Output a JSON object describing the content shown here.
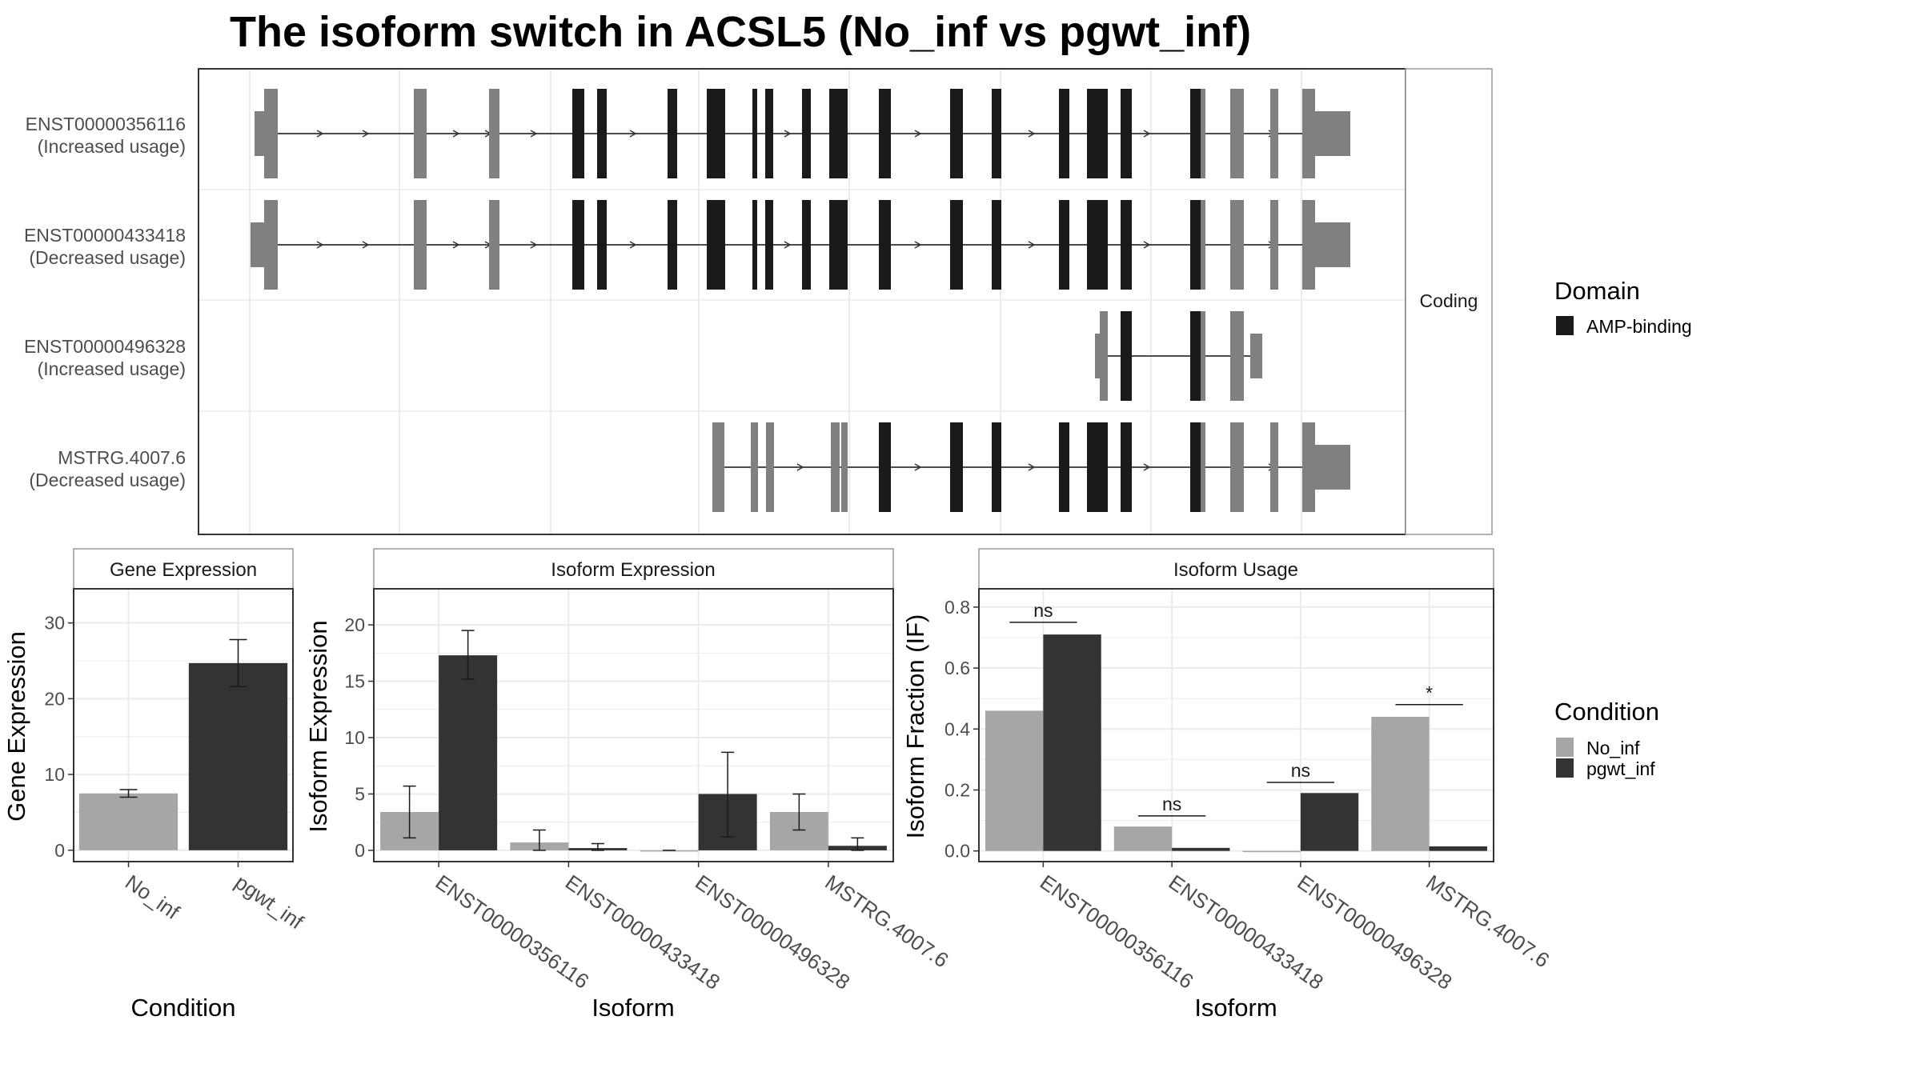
{
  "title": "The isoform switch in ACSL5 (No_inf vs pgwt_inf)",
  "colors": {
    "utr": "#808080",
    "domain": "#1a1a1a",
    "no_inf": "#a6a6a6",
    "pgwt_inf": "#333333",
    "grid": "#ebebeb",
    "panel_border": "#333333",
    "strip_fill": "#ffffff",
    "strip_border": "#999999"
  },
  "structure": {
    "strip_label": "Coding",
    "isoforms": [
      {
        "id": "ENST00000356116",
        "usage": "(Increased usage)"
      },
      {
        "id": "ENST00000433418",
        "usage": "(Decreased usage)"
      },
      {
        "id": "ENST00000496328",
        "usage": "(Increased usage)"
      },
      {
        "id": "MSTRG.4007.6",
        "usage": "(Decreased usage)"
      }
    ],
    "legend": {
      "title": "Domain",
      "items": [
        "AMP-binding"
      ]
    }
  },
  "chart_data": [
    {
      "type": "bar",
      "panel": "Gene Expression",
      "title": "Gene Expression",
      "xlabel": "Condition",
      "ylabel": "Gene Expression",
      "categories": [
        "No_inf",
        "pgwt_inf"
      ],
      "values": [
        7.5,
        24.7
      ],
      "err_low": [
        7.0,
        21.6
      ],
      "err_high": [
        8.0,
        27.8
      ],
      "ylim": [
        -1.5,
        34.5
      ],
      "yticks": [
        0,
        10,
        20,
        30
      ]
    },
    {
      "type": "bar",
      "panel": "Isoform Expression",
      "title": "Isoform Expression",
      "xlabel": "Isoform",
      "ylabel": "Isoform Expression",
      "categories": [
        "ENST00000356116",
        "ENST00000433418",
        "ENST00000496328",
        "MSTRG.4007.6"
      ],
      "series": [
        {
          "name": "No_inf",
          "values": [
            3.4,
            0.7,
            0.0,
            3.4
          ],
          "err_low": [
            1.1,
            0.0,
            0.0,
            1.8
          ],
          "err_high": [
            5.7,
            1.8,
            0.0,
            5.0
          ]
        },
        {
          "name": "pgwt_inf",
          "values": [
            17.3,
            0.2,
            5.0,
            0.4
          ],
          "err_low": [
            15.2,
            0.0,
            1.2,
            0.0
          ],
          "err_high": [
            19.5,
            0.6,
            8.7,
            1.1
          ]
        }
      ],
      "ylim": [
        -1.0,
        23.2
      ],
      "yticks": [
        0,
        5,
        10,
        15,
        20
      ]
    },
    {
      "type": "bar",
      "panel": "Isoform Usage",
      "title": "Isoform Usage",
      "xlabel": "Isoform",
      "ylabel": "Isoform Fraction (IF)",
      "categories": [
        "ENST00000356116",
        "ENST00000433418",
        "ENST00000496328",
        "MSTRG.4007.6"
      ],
      "series": [
        {
          "name": "No_inf",
          "values": [
            0.46,
            0.08,
            0.0,
            0.44
          ]
        },
        {
          "name": "pgwt_inf",
          "values": [
            0.71,
            0.01,
            0.19,
            0.015
          ]
        }
      ],
      "significance": [
        {
          "label": "ns",
          "y": 0.75
        },
        {
          "label": "ns",
          "y": 0.115
        },
        {
          "label": "ns",
          "y": 0.225
        },
        {
          "label": "*",
          "y": 0.48
        }
      ],
      "ylim": [
        -0.035,
        0.86
      ],
      "yticks": [
        0.0,
        0.2,
        0.4,
        0.6,
        0.8
      ],
      "ytick_labels": [
        "0.0",
        "0.2",
        "0.4",
        "0.6",
        "0.8"
      ]
    }
  ],
  "condition_legend": {
    "title": "Condition",
    "items": [
      "No_inf",
      "pgwt_inf"
    ]
  }
}
